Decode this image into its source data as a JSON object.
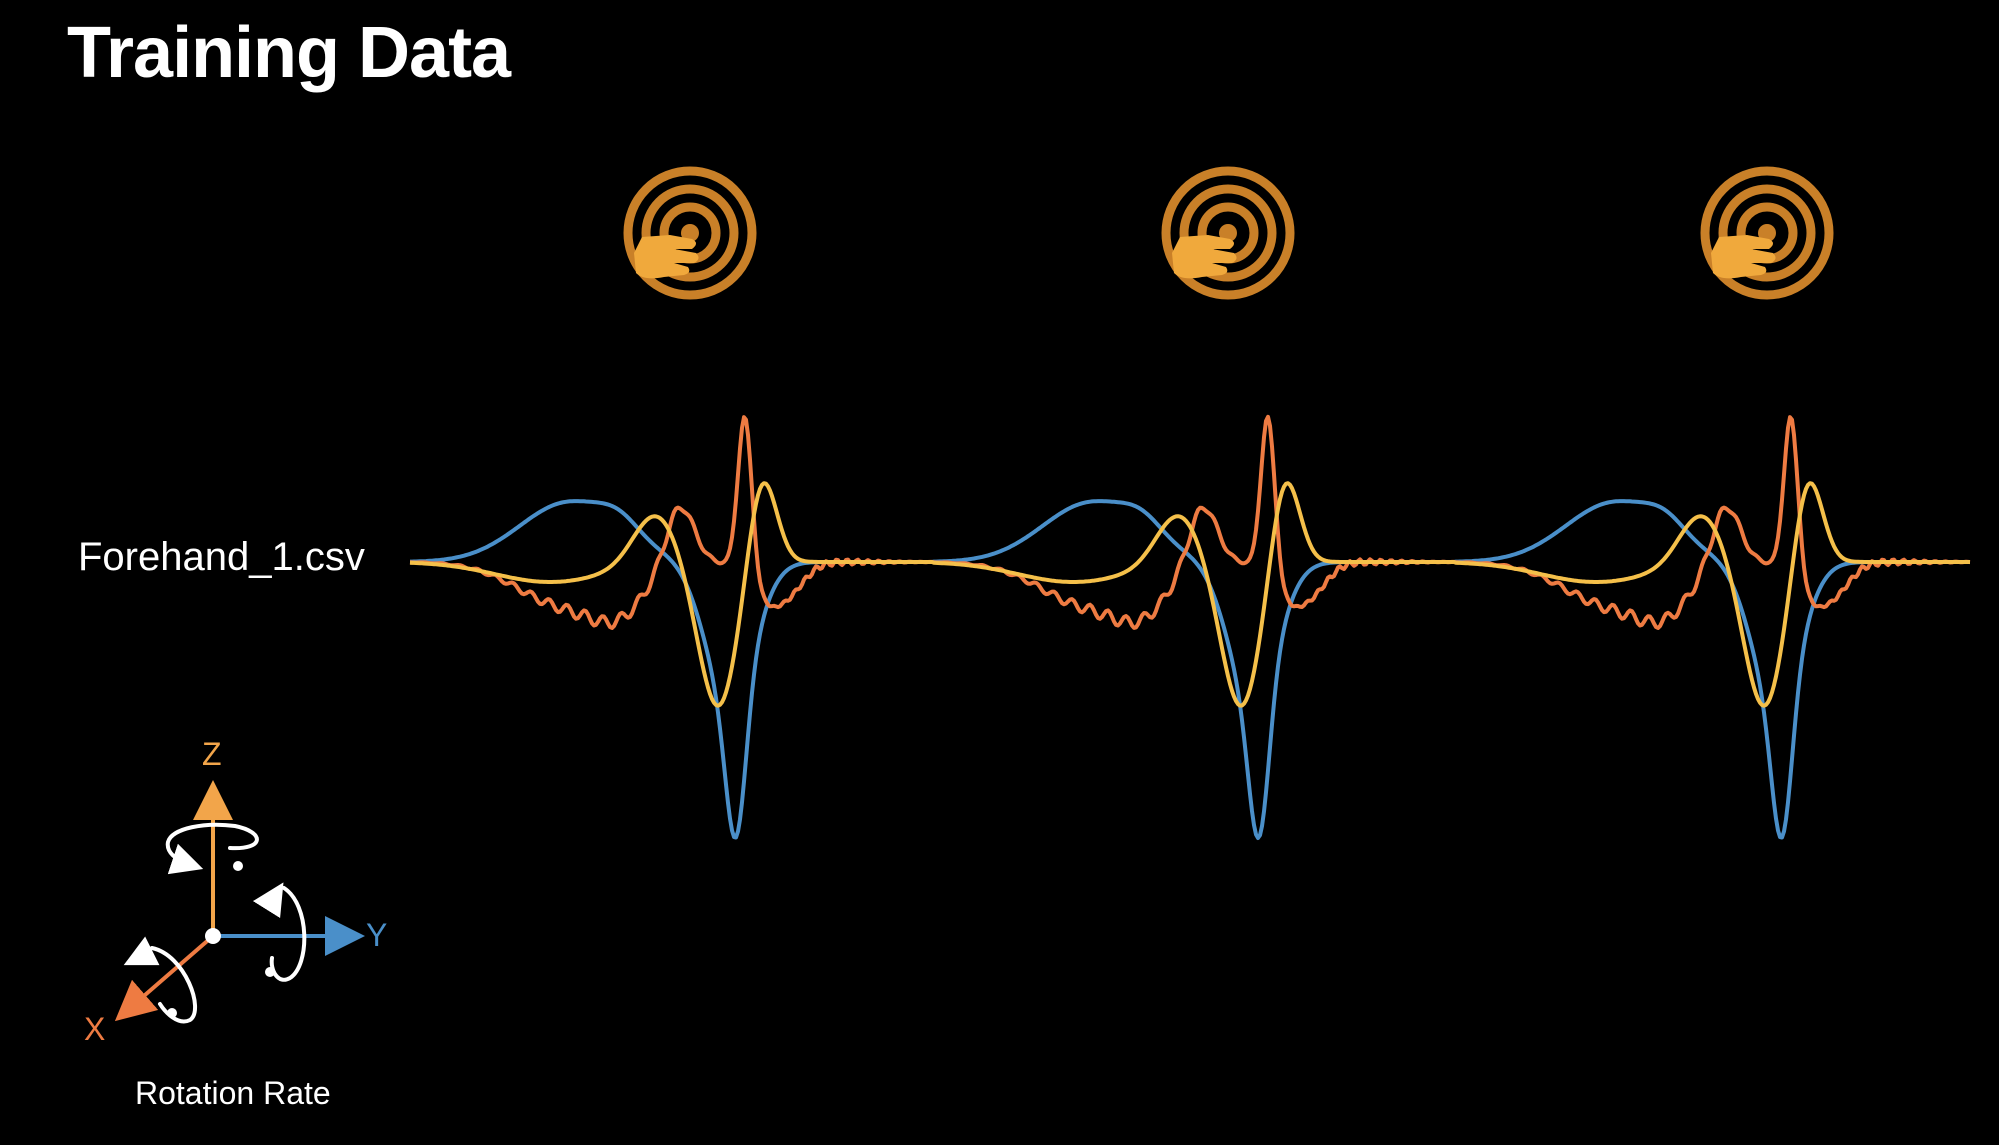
{
  "title": "Training Data",
  "file_label": "Forehand_1.csv",
  "legend": {
    "axes": [
      {
        "key": "z",
        "label": "Z",
        "color": "#f2a54a"
      },
      {
        "key": "y",
        "label": "Y",
        "color": "#4a8fc9"
      },
      {
        "key": "x",
        "label": "X",
        "color": "#ee7b42"
      }
    ],
    "caption": "Rotation Rate"
  },
  "colors": {
    "background": "#000000",
    "x_series": "#ee7b42",
    "y_series": "#4a8fc9",
    "z_series": "#f5c04a",
    "icon_ring": "#c98028",
    "icon_hand": "#f0a93c"
  },
  "icons": [
    "tap-gesture-icon",
    "tap-gesture-icon",
    "tap-gesture-icon"
  ],
  "waveform": {
    "repetitions": 3,
    "series": [
      "x",
      "y",
      "z"
    ]
  }
}
